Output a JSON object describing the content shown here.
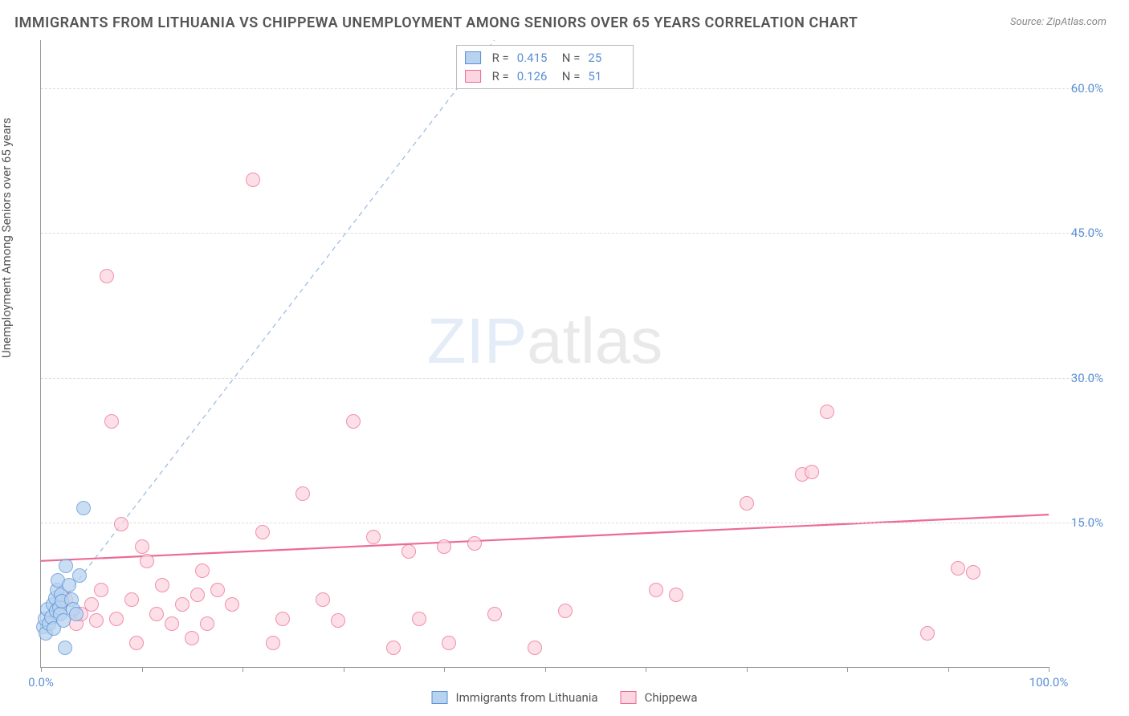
{
  "title": "IMMIGRANTS FROM LITHUANIA VS CHIPPEWA UNEMPLOYMENT AMONG SENIORS OVER 65 YEARS CORRELATION CHART",
  "source": "Source: ZipAtlas.com",
  "y_axis_label": "Unemployment Among Seniors over 65 years",
  "watermark_a": "ZIP",
  "watermark_b": "atlas",
  "chart": {
    "type": "scatter",
    "background_color": "#ffffff",
    "grid_color": "#dddddd",
    "axis_color": "#999999",
    "tick_label_color": "#5b8fd6",
    "xlim": [
      0,
      100
    ],
    "ylim": [
      0,
      65
    ],
    "x_ticks": [
      0,
      10,
      20,
      30,
      40,
      50,
      60,
      70,
      80,
      90,
      100
    ],
    "x_tick_labels": {
      "0": "0.0%",
      "100": "100.0%"
    },
    "y_ticks": [
      15,
      30,
      45,
      60
    ],
    "y_tick_labels": {
      "15": "15.0%",
      "30": "30.0%",
      "45": "45.0%",
      "60": "60.0%"
    },
    "marker_radius": 9,
    "marker_stroke_width": 1.2,
    "series": [
      {
        "name": "Immigrants from Lithuania",
        "color_fill": "#b7d3f0",
        "color_stroke": "#5b8fd6",
        "R": "0.415",
        "N": "25",
        "trend": {
          "style": "dashed",
          "color": "#9ab8e0",
          "x1": 0,
          "y1": 4,
          "x2": 45,
          "y2": 65
        },
        "points": [
          [
            0.2,
            4.2
          ],
          [
            0.4,
            5.0
          ],
          [
            0.5,
            3.5
          ],
          [
            0.6,
            6.0
          ],
          [
            0.8,
            4.5
          ],
          [
            1.0,
            5.2
          ],
          [
            1.2,
            6.5
          ],
          [
            1.3,
            4.0
          ],
          [
            1.4,
            7.2
          ],
          [
            1.5,
            5.8
          ],
          [
            1.6,
            8.0
          ],
          [
            1.7,
            9.0
          ],
          [
            1.8,
            6.2
          ],
          [
            1.9,
            5.5
          ],
          [
            2.0,
            7.5
          ],
          [
            2.1,
            6.8
          ],
          [
            2.2,
            4.8
          ],
          [
            2.4,
            2.0
          ],
          [
            2.5,
            10.5
          ],
          [
            2.8,
            8.5
          ],
          [
            3.0,
            7.0
          ],
          [
            3.2,
            6.0
          ],
          [
            3.5,
            5.5
          ],
          [
            3.8,
            9.5
          ],
          [
            4.2,
            16.5
          ]
        ]
      },
      {
        "name": "Chippewa",
        "color_fill": "#fbd5e0",
        "color_stroke": "#ec6a94",
        "R": "0.126",
        "N": "51",
        "trend": {
          "style": "solid",
          "color": "#ec6a94",
          "x1": 0,
          "y1": 11.0,
          "x2": 100,
          "y2": 15.8
        },
        "points": [
          [
            2.5,
            7.0
          ],
          [
            3.5,
            4.5
          ],
          [
            4.0,
            5.5
          ],
          [
            5.0,
            6.5
          ],
          [
            5.5,
            4.8
          ],
          [
            6.0,
            8.0
          ],
          [
            6.5,
            40.5
          ],
          [
            7.0,
            25.5
          ],
          [
            7.5,
            5.0
          ],
          [
            8.0,
            14.8
          ],
          [
            9.0,
            7.0
          ],
          [
            9.5,
            2.5
          ],
          [
            10.0,
            12.5
          ],
          [
            10.5,
            11.0
          ],
          [
            11.5,
            5.5
          ],
          [
            12.0,
            8.5
          ],
          [
            13.0,
            4.5
          ],
          [
            14.0,
            6.5
          ],
          [
            15.0,
            3.0
          ],
          [
            15.5,
            7.5
          ],
          [
            16.0,
            10.0
          ],
          [
            16.5,
            4.5
          ],
          [
            17.5,
            8.0
          ],
          [
            19.0,
            6.5
          ],
          [
            21.0,
            50.5
          ],
          [
            22.0,
            14.0
          ],
          [
            23.0,
            2.5
          ],
          [
            24.0,
            5.0
          ],
          [
            26.0,
            18.0
          ],
          [
            28.0,
            7.0
          ],
          [
            29.5,
            4.8
          ],
          [
            31.0,
            25.5
          ],
          [
            33.0,
            13.5
          ],
          [
            35.0,
            2.0
          ],
          [
            36.5,
            12.0
          ],
          [
            37.5,
            5.0
          ],
          [
            40.0,
            12.5
          ],
          [
            40.5,
            2.5
          ],
          [
            43.0,
            12.8
          ],
          [
            45.0,
            5.5
          ],
          [
            49.0,
            2.0
          ],
          [
            52.0,
            5.8
          ],
          [
            61.0,
            8.0
          ],
          [
            63.0,
            7.5
          ],
          [
            70.0,
            17.0
          ],
          [
            75.5,
            20.0
          ],
          [
            76.5,
            20.2
          ],
          [
            78.0,
            26.5
          ],
          [
            88.0,
            3.5
          ],
          [
            91.0,
            10.2
          ],
          [
            92.5,
            9.8
          ]
        ]
      }
    ]
  },
  "legend_top_labels": {
    "R": "R =",
    "N": "N ="
  },
  "legend_bottom": [
    {
      "label": "Immigrants from Lithuania",
      "fill": "#b7d3f0",
      "stroke": "#5b8fd6"
    },
    {
      "label": "Chippewa",
      "fill": "#fbd5e0",
      "stroke": "#ec6a94"
    }
  ]
}
